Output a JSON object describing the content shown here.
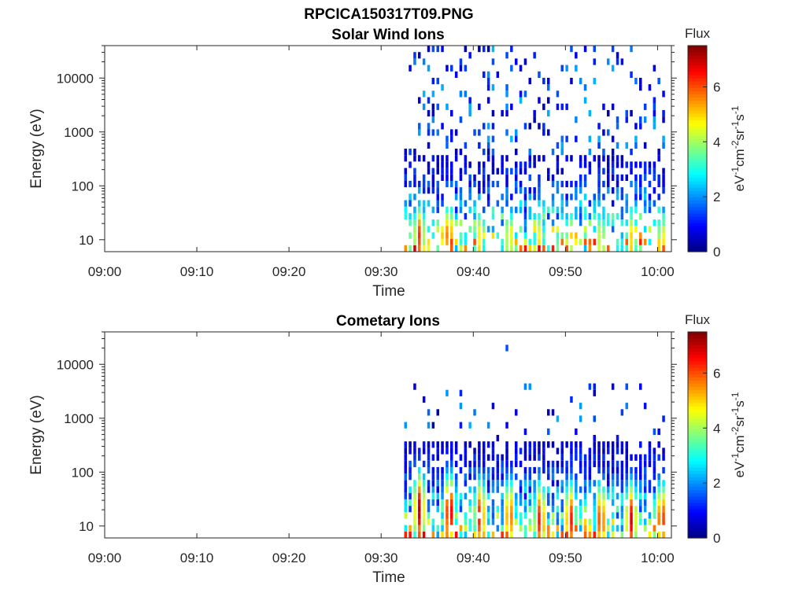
{
  "figure": {
    "title": "RPCICA150317T09.PNG"
  },
  "chart_data": [
    {
      "type": "heatmap",
      "title": "Solar Wind Ions",
      "xlabel": "Time",
      "ylabel": "Energy (eV)",
      "x_ticks": [
        "09:00",
        "09:10",
        "09:20",
        "09:30",
        "09:40",
        "09:50",
        "10:00"
      ],
      "xlim_minutes": [
        0,
        61.5
      ],
      "y_ticks": [
        "10",
        "100",
        "1000",
        "10000"
      ],
      "y_scale": "log",
      "ylim": [
        6,
        40000
      ],
      "colorbar": {
        "title": "Flux",
        "label": "eV-1cm-2sr-1s-1",
        "ticks": [
          0,
          2,
          4,
          6
        ],
        "range": [
          0,
          7.5
        ],
        "colormap": "jet"
      },
      "data_start_minutes": 32.5,
      "data_end_minutes": 61,
      "description_of_peaks": [
        {
          "time_minutes": 34,
          "energy_eV": 12,
          "flux": 6.2
        },
        {
          "time_minutes": 37.2,
          "energy_eV": 12,
          "flux": 6.0
        },
        {
          "time_minutes": 40.5,
          "energy_eV": 11,
          "flux": 4.8
        },
        {
          "time_minutes": 43.8,
          "energy_eV": 11,
          "flux": 4.8
        },
        {
          "time_minutes": 47,
          "energy_eV": 11,
          "flux": 4.6
        },
        {
          "time_minutes": 50.4,
          "energy_eV": 11,
          "flux": 4.7
        },
        {
          "time_minutes": 53.7,
          "energy_eV": 11,
          "flux": 4.5
        },
        {
          "time_minutes": 57,
          "energy_eV": 11,
          "flux": 5.0
        },
        {
          "time_minutes": 60.3,
          "energy_eV": 11,
          "flux": 4.5
        }
      ]
    },
    {
      "type": "heatmap",
      "title": "Cometary Ions",
      "xlabel": "Time",
      "ylabel": "Energy (eV)",
      "x_ticks": [
        "09:00",
        "09:10",
        "09:20",
        "09:30",
        "09:40",
        "09:50",
        "10:00"
      ],
      "xlim_minutes": [
        0,
        61.5
      ],
      "y_ticks": [
        "10",
        "100",
        "1000",
        "10000"
      ],
      "y_scale": "log",
      "ylim": [
        6,
        40000
      ],
      "colorbar": {
        "title": "Flux",
        "label": "eV-1cm-2sr-1s-1",
        "ticks": [
          0,
          2,
          4,
          6
        ],
        "range": [
          0,
          7.5
        ],
        "colormap": "jet"
      },
      "data_start_minutes": 32.5,
      "data_end_minutes": 61,
      "description_of_peaks": [
        {
          "time_minutes": 34,
          "energy_eV": 20,
          "flux": 7.0
        },
        {
          "time_minutes": 37.3,
          "energy_eV": 18,
          "flux": 7.0
        },
        {
          "time_minutes": 40.6,
          "energy_eV": 15,
          "flux": 6.5
        },
        {
          "time_minutes": 43.8,
          "energy_eV": 15,
          "flux": 6.0
        },
        {
          "time_minutes": 47.1,
          "energy_eV": 13,
          "flux": 6.5
        },
        {
          "time_minutes": 50.4,
          "energy_eV": 13,
          "flux": 6.5
        },
        {
          "time_minutes": 53.7,
          "energy_eV": 13,
          "flux": 6.3
        },
        {
          "time_minutes": 57,
          "energy_eV": 13,
          "flux": 6.8
        },
        {
          "time_minutes": 60.3,
          "energy_eV": 13,
          "flux": 6.5
        }
      ]
    }
  ]
}
